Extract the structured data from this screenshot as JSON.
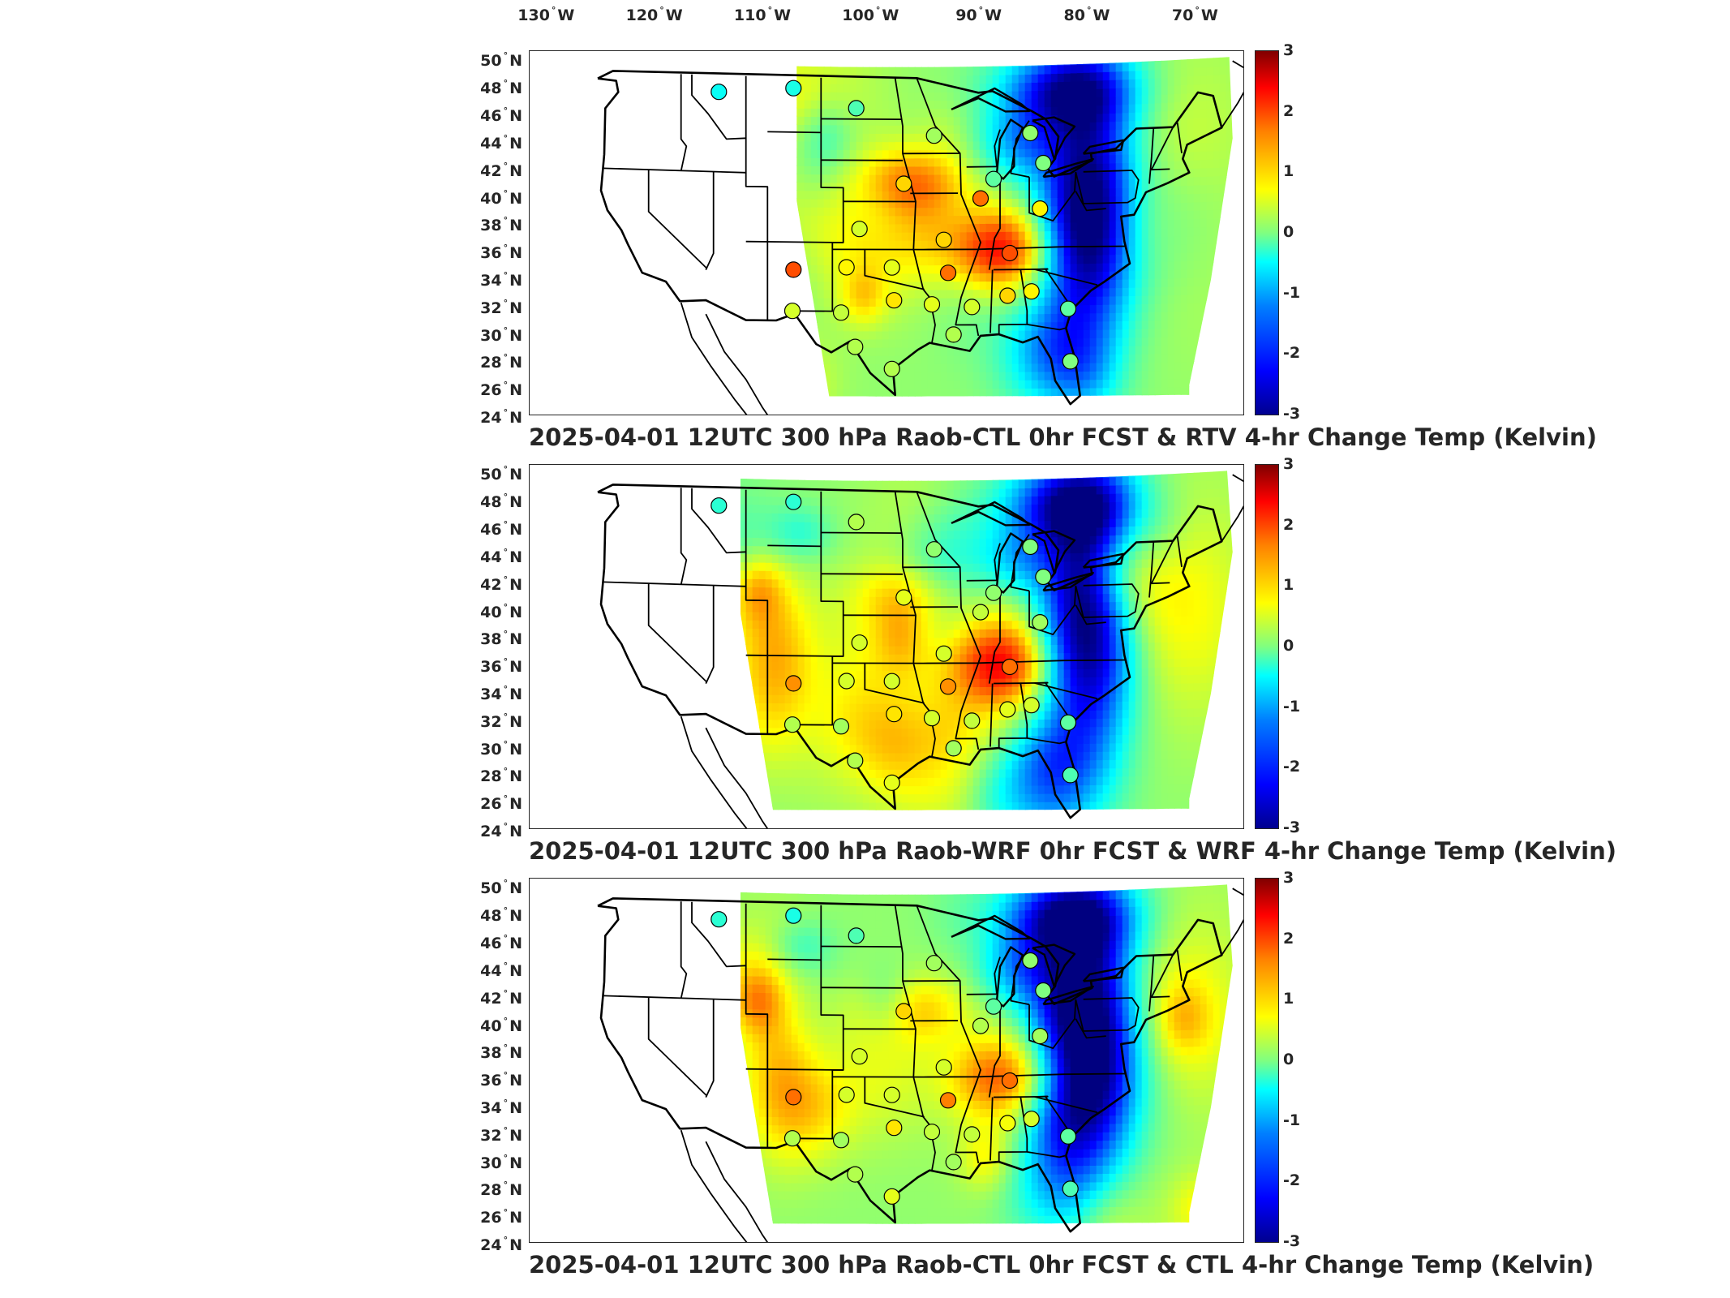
{
  "longitude_labels": [
    "130",
    "120",
    "110",
    "100",
    "90",
    "80",
    "70"
  ],
  "longitude_suffix": "W",
  "latitude_labels": [
    "50",
    "48",
    "46",
    "44",
    "42",
    "40",
    "38",
    "36",
    "34",
    "32",
    "30",
    "28",
    "26",
    "24"
  ],
  "latitude_suffix": "N",
  "colorbar": {
    "ticks": [
      "3",
      "2",
      "1",
      "0",
      "-1",
      "-2",
      "-3"
    ],
    "range": [
      -3,
      3
    ],
    "colormap": "jet",
    "colors": [
      "#00008f",
      "#0000ff",
      "#0080ff",
      "#00ffff",
      "#80ff80",
      "#ffff00",
      "#ff8000",
      "#ff0000",
      "#800000"
    ]
  },
  "panels": [
    {
      "title": "2025-04-01 12UTC 300 hPa Raob-CTL 0hr FCST & RTV 4-hr Change Temp (Kelvin)",
      "field": "RTV 4-hr change",
      "stations": [
        {
          "lon": -113.5,
          "lat": 47.8,
          "value": -0.7
        },
        {
          "lon": -106.6,
          "lat": 48.2,
          "value": -0.6
        },
        {
          "lon": -100.8,
          "lat": 46.8,
          "value": -0.3
        },
        {
          "lon": -93.6,
          "lat": 44.8,
          "value": 0.2
        },
        {
          "lon": -84.7,
          "lat": 44.9,
          "value": 0.1
        },
        {
          "lon": -83.5,
          "lat": 42.7,
          "value": 0.0
        },
        {
          "lon": -88.1,
          "lat": 41.6,
          "value": -0.2
        },
        {
          "lon": -96.4,
          "lat": 41.3,
          "value": 1.0
        },
        {
          "lon": -89.3,
          "lat": 40.2,
          "value": 1.6
        },
        {
          "lon": -83.8,
          "lat": 39.4,
          "value": 0.8
        },
        {
          "lon": -100.5,
          "lat": 38.0,
          "value": 0.5
        },
        {
          "lon": -92.7,
          "lat": 37.2,
          "value": 1.0
        },
        {
          "lon": -86.6,
          "lat": 36.2,
          "value": 1.8
        },
        {
          "lon": -106.6,
          "lat": 35.0,
          "value": 1.8
        },
        {
          "lon": -101.7,
          "lat": 35.2,
          "value": 0.8
        },
        {
          "lon": -97.5,
          "lat": 35.2,
          "value": 0.6
        },
        {
          "lon": -92.3,
          "lat": 34.8,
          "value": 1.6
        },
        {
          "lon": -97.3,
          "lat": 32.8,
          "value": 0.9
        },
        {
          "lon": -93.8,
          "lat": 32.5,
          "value": 0.6
        },
        {
          "lon": -90.1,
          "lat": 32.3,
          "value": 0.5
        },
        {
          "lon": -86.8,
          "lat": 33.1,
          "value": 1.0
        },
        {
          "lon": -84.6,
          "lat": 33.4,
          "value": 0.8
        },
        {
          "lon": -81.2,
          "lat": 32.1,
          "value": -0.2
        },
        {
          "lon": -106.7,
          "lat": 32.0,
          "value": 0.5
        },
        {
          "lon": -102.2,
          "lat": 31.9,
          "value": 0.4
        },
        {
          "lon": -100.9,
          "lat": 29.4,
          "value": 0.3
        },
        {
          "lon": -97.5,
          "lat": 27.8,
          "value": 0.3
        },
        {
          "lon": -91.8,
          "lat": 30.3,
          "value": 0.3
        },
        {
          "lon": -81.0,
          "lat": 28.3,
          "value": 0.0
        }
      ]
    },
    {
      "title": "2025-04-01 12UTC 300 hPa Raob-WRF 0hr FCST & WRF 4-hr Change Temp (Kelvin)",
      "field": "WRF 4-hr change",
      "stations": [
        {
          "lon": -113.5,
          "lat": 47.8,
          "value": -0.5
        },
        {
          "lon": -106.6,
          "lat": 48.2,
          "value": -0.5
        },
        {
          "lon": -100.8,
          "lat": 46.8,
          "value": 0.3
        },
        {
          "lon": -93.6,
          "lat": 44.8,
          "value": 0.1
        },
        {
          "lon": -84.7,
          "lat": 44.9,
          "value": 0.0
        },
        {
          "lon": -83.5,
          "lat": 42.7,
          "value": 0.0
        },
        {
          "lon": -88.1,
          "lat": 41.6,
          "value": 0.1
        },
        {
          "lon": -96.4,
          "lat": 41.3,
          "value": 0.6
        },
        {
          "lon": -89.3,
          "lat": 40.2,
          "value": 0.4
        },
        {
          "lon": -83.8,
          "lat": 39.4,
          "value": 0.2
        },
        {
          "lon": -100.5,
          "lat": 38.0,
          "value": 0.5
        },
        {
          "lon": -92.7,
          "lat": 37.2,
          "value": 0.5
        },
        {
          "lon": -86.6,
          "lat": 36.2,
          "value": 1.6
        },
        {
          "lon": -106.6,
          "lat": 35.0,
          "value": 1.4
        },
        {
          "lon": -101.7,
          "lat": 35.2,
          "value": 0.5
        },
        {
          "lon": -97.5,
          "lat": 35.2,
          "value": 0.5
        },
        {
          "lon": -92.3,
          "lat": 34.8,
          "value": 1.4
        },
        {
          "lon": -97.3,
          "lat": 32.8,
          "value": 0.9
        },
        {
          "lon": -93.8,
          "lat": 32.5,
          "value": 0.5
        },
        {
          "lon": -90.1,
          "lat": 32.3,
          "value": 0.4
        },
        {
          "lon": -86.8,
          "lat": 33.1,
          "value": 0.6
        },
        {
          "lon": -84.6,
          "lat": 33.4,
          "value": 0.5
        },
        {
          "lon": -81.2,
          "lat": 32.1,
          "value": -0.2
        },
        {
          "lon": -106.7,
          "lat": 32.0,
          "value": 0.3
        },
        {
          "lon": -102.2,
          "lat": 31.9,
          "value": 0.2
        },
        {
          "lon": -100.9,
          "lat": 29.4,
          "value": 0.3
        },
        {
          "lon": -97.5,
          "lat": 27.8,
          "value": 0.6
        },
        {
          "lon": -91.8,
          "lat": 30.3,
          "value": 0.2
        },
        {
          "lon": -81.0,
          "lat": 28.3,
          "value": -0.3
        }
      ]
    },
    {
      "title": "2025-04-01 12UTC 300 hPa Raob-CTL 0hr FCST & CTL 4-hr Change Temp (Kelvin)",
      "field": "CTL 4-hr change",
      "stations": [
        {
          "lon": -113.5,
          "lat": 47.8,
          "value": -0.5
        },
        {
          "lon": -106.6,
          "lat": 48.2,
          "value": -0.6
        },
        {
          "lon": -100.8,
          "lat": 46.8,
          "value": -0.3
        },
        {
          "lon": -93.6,
          "lat": 44.8,
          "value": 0.2
        },
        {
          "lon": -84.7,
          "lat": 44.9,
          "value": 0.1
        },
        {
          "lon": -83.5,
          "lat": 42.7,
          "value": 0.0
        },
        {
          "lon": -88.1,
          "lat": 41.6,
          "value": -0.2
        },
        {
          "lon": -96.4,
          "lat": 41.3,
          "value": 1.0
        },
        {
          "lon": -89.3,
          "lat": 40.2,
          "value": 0.3
        },
        {
          "lon": -83.8,
          "lat": 39.4,
          "value": 0.2
        },
        {
          "lon": -100.5,
          "lat": 38.0,
          "value": 0.5
        },
        {
          "lon": -92.7,
          "lat": 37.2,
          "value": 0.5
        },
        {
          "lon": -86.6,
          "lat": 36.2,
          "value": 1.6
        },
        {
          "lon": -106.6,
          "lat": 35.0,
          "value": 1.6
        },
        {
          "lon": -101.7,
          "lat": 35.2,
          "value": 0.5
        },
        {
          "lon": -97.5,
          "lat": 35.2,
          "value": 0.5
        },
        {
          "lon": -92.3,
          "lat": 34.8,
          "value": 1.5
        },
        {
          "lon": -97.3,
          "lat": 32.8,
          "value": 0.9
        },
        {
          "lon": -93.8,
          "lat": 32.5,
          "value": 0.4
        },
        {
          "lon": -90.1,
          "lat": 32.3,
          "value": 0.4
        },
        {
          "lon": -86.8,
          "lat": 33.1,
          "value": 0.7
        },
        {
          "lon": -84.6,
          "lat": 33.4,
          "value": 0.5
        },
        {
          "lon": -81.2,
          "lat": 32.1,
          "value": -0.2
        },
        {
          "lon": -106.7,
          "lat": 32.0,
          "value": 0.3
        },
        {
          "lon": -102.2,
          "lat": 31.9,
          "value": 0.2
        },
        {
          "lon": -100.9,
          "lat": 29.4,
          "value": 0.3
        },
        {
          "lon": -97.5,
          "lat": 27.8,
          "value": 0.6
        },
        {
          "lon": -91.8,
          "lat": 30.3,
          "value": 0.2
        },
        {
          "lon": -81.0,
          "lat": 28.3,
          "value": -0.3
        }
      ]
    }
  ]
}
